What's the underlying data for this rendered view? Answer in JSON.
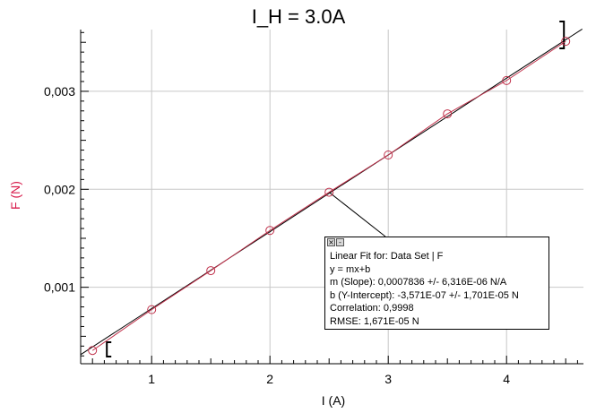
{
  "chart_data": {
    "type": "scatter",
    "title": "I_H = 3.0A",
    "xlabel": "I (A)",
    "ylabel": "F (N)",
    "xlim": [
      0.4,
      4.65
    ],
    "ylim": [
      0.00022,
      0.00363
    ],
    "x_ticks": [
      1,
      2,
      3,
      4
    ],
    "x_tick_labels": [
      "1",
      "2",
      "3",
      "4"
    ],
    "y_ticks": [
      0.001,
      0.002,
      0.003
    ],
    "y_tick_labels": [
      "0,001",
      "0,002",
      "0,003"
    ],
    "grid": true,
    "series": [
      {
        "marker": "open-circle",
        "color": "#c0304a",
        "connected_line": true,
        "x": [
          0.5,
          1.0,
          1.5,
          2.0,
          2.5,
          3.0,
          3.5,
          4.0,
          4.5
        ],
        "y": [
          0.000355,
          0.000772,
          0.00117,
          0.00158,
          0.00197,
          0.00235,
          0.00277,
          0.00311,
          0.00351
        ]
      }
    ],
    "fit": {
      "type": "linear",
      "slope": 0.0007836,
      "intercept": -3.571e-07,
      "range": [
        0.5,
        4.5
      ],
      "color": "#000000",
      "annotation_point": [
        2.5,
        0.00197
      ]
    },
    "annotation": {
      "lines": [
        "Linear Fit for: Data Set | F",
        "y = mx+b",
        "m (Slope): 0,0007836 +/- 6,316E-06 N/A",
        "b (Y-Intercept): -3,571E-07 +/- 1,701E-05 N",
        "Correlation: 0,9998",
        "RMSE: 1,671E-05 N"
      ]
    },
    "colors": {
      "data": "#c0304a",
      "ylabel": "#d81b4b",
      "grid": "#c8c8c8",
      "fit": "#000000"
    }
  }
}
